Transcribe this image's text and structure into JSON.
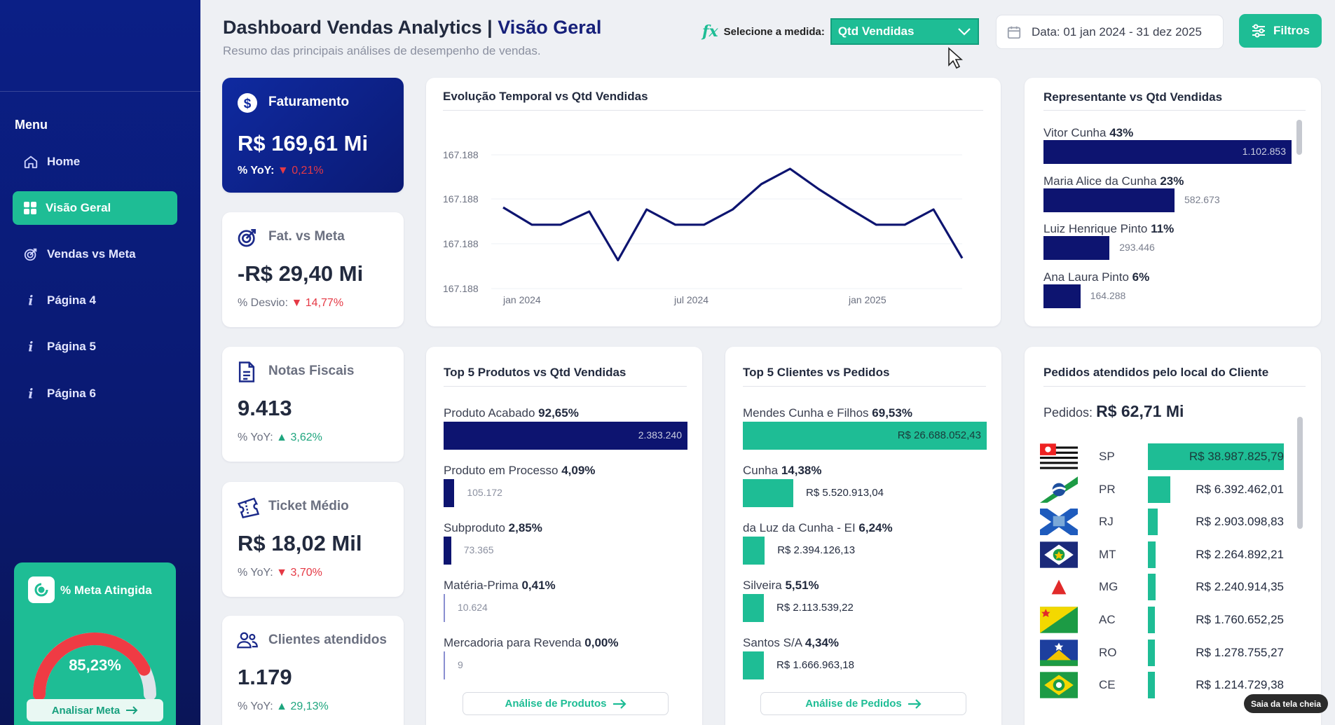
{
  "sidebar": {
    "menu_label": "Menu",
    "items": [
      {
        "label": "Home",
        "icon": "home-icon"
      },
      {
        "label": "Visão Geral",
        "icon": "grid-icon",
        "active": true
      },
      {
        "label": "Vendas vs Meta",
        "icon": "target-icon"
      },
      {
        "label": "Página 4",
        "icon": "info-icon"
      },
      {
        "label": "Página 5",
        "icon": "info-icon"
      },
      {
        "label": "Página 6",
        "icon": "info-icon"
      }
    ],
    "meta": {
      "title": "% Meta Atingida",
      "value": "85,23%",
      "fraction": 0.8523,
      "button": "Analisar Meta"
    }
  },
  "header": {
    "title": "Dashboard Vendas Analytics",
    "separator": "|",
    "title_sub": "Visão Geral",
    "subtitle": "Resumo das principais análises de desempenho de vendas.",
    "measure_label": "Selecione a medida:",
    "measure_value": "Qtd Vendidas",
    "date_range": "Data: 01 jan 2024 - 31 dez 2025",
    "filters_button": "Filtros"
  },
  "kpis": {
    "faturamento": {
      "label": "Faturamento",
      "value": "R$ 169,61 Mi",
      "yoy_label": "% YoY:",
      "yoy_value": "0,21%",
      "arrow": "▼"
    },
    "fat_meta": {
      "label": "Fat. vs Meta",
      "value": "-R$ 29,40 Mi",
      "yoy_label": "% Desvio:",
      "yoy_value": "14,77%",
      "arrow": "▼"
    },
    "notas": {
      "label": "Notas Fiscais",
      "value": "9.413",
      "yoy_label": "% YoY:",
      "yoy_value": "3,62%",
      "arrow": "▲"
    },
    "ticket": {
      "label": "Ticket Médio",
      "value": "R$ 18,02 Mil",
      "yoy_label": "% YoY:",
      "yoy_value": "3,70%",
      "arrow": "▼"
    },
    "clientes": {
      "label": "Clientes atendidos",
      "value": "1.179",
      "yoy_label": "% YoY:",
      "yoy_value": "29,13%",
      "arrow": "▲"
    }
  },
  "evolucao": {
    "title": "Evolução Temporal vs Qtd Vendidas"
  },
  "representante": {
    "title": "Representante vs Qtd Vendidas",
    "items": [
      {
        "name": "Vitor Cunha",
        "pct": "43%",
        "value": "1.102.853",
        "v": 1102853
      },
      {
        "name": "Maria Alice da Cunha",
        "pct": "23%",
        "value": "582.673",
        "v": 582673
      },
      {
        "name": "Luiz Henrique Pinto",
        "pct": "11%",
        "value": "293.446",
        "v": 293446
      },
      {
        "name": "Ana Laura Pinto",
        "pct": "6%",
        "value": "164.288",
        "v": 164288
      }
    ]
  },
  "produtos": {
    "title": "Top 5 Produtos vs Qtd Vendidas",
    "button": "Análise de Produtos",
    "items": [
      {
        "name": "Produto Acabado",
        "pct": "92,65%",
        "value": "2.383.240",
        "v": 2383240
      },
      {
        "name": "Produto em Processo",
        "pct": "4,09%",
        "value": "105.172",
        "v": 105172
      },
      {
        "name": "Subproduto",
        "pct": "2,85%",
        "value": "73.365",
        "v": 73365
      },
      {
        "name": "Matéria-Prima",
        "pct": "0,41%",
        "value": "10.624",
        "v": 10624
      },
      {
        "name": "Mercadoria para Revenda",
        "pct": "0,00%",
        "value": "9",
        "v": 9
      }
    ]
  },
  "clientes": {
    "title": "Top 5 Clientes vs Pedidos",
    "button": "Análise de Pedidos",
    "items": [
      {
        "name": "Mendes Cunha e Filhos",
        "pct": "69,53%",
        "value": "R$ 26.688.052,43",
        "v": 26688052.43
      },
      {
        "name": "Cunha",
        "pct": "14,38%",
        "value": "R$ 5.520.913,04",
        "v": 5520913.04
      },
      {
        "name": "da Luz da Cunha - EI",
        "pct": "6,24%",
        "value": "R$ 2.394.126,13",
        "v": 2394126.13
      },
      {
        "name": "Silveira",
        "pct": "5,51%",
        "value": "R$ 2.113.539,22",
        "v": 2113539.22
      },
      {
        "name": "Santos S/A",
        "pct": "4,34%",
        "value": "R$ 1.666.963,18",
        "v": 1666963.18
      }
    ]
  },
  "local": {
    "title": "Pedidos atendidos pelo local do Cliente",
    "total_label": "Pedidos:",
    "total_value": "R$ 62,71 Mi",
    "items": [
      {
        "uf": "SP",
        "value": "R$ 38.987.825,79",
        "v": 38987825.79
      },
      {
        "uf": "PR",
        "value": "R$ 6.392.462,01",
        "v": 6392462.01
      },
      {
        "uf": "RJ",
        "value": "R$ 2.903.098,83",
        "v": 2903098.83
      },
      {
        "uf": "MT",
        "value": "R$ 2.264.892,21",
        "v": 2264892.21
      },
      {
        "uf": "MG",
        "value": "R$ 2.240.914,35",
        "v": 2240914.35
      },
      {
        "uf": "AC",
        "value": "R$ 1.760.652,25",
        "v": 1760652.25
      },
      {
        "uf": "RO",
        "value": "R$ 1.278.755,27",
        "v": 1278755.27
      },
      {
        "uf": "CE",
        "value": "R$ 1.214.729,38",
        "v": 1214729.38
      }
    ]
  },
  "toast": "Saia da tela cheia",
  "colors": {
    "navy": "#0b1a74",
    "teal": "#1ebd95",
    "red": "#e53945",
    "green": "#1ea57e"
  },
  "chart_data": {
    "type": "line",
    "title": "Evolução Temporal vs Qtd Vendidas",
    "x_tick_labels": [
      "jan 2024",
      "jul 2024",
      "jan 2025"
    ],
    "y_tick_labels": [
      "167.188",
      "167.188",
      "167.188",
      "167.188"
    ],
    "series": [
      {
        "values": [
          0.62,
          0.45,
          0.45,
          0.58,
          0.1,
          0.6,
          0.45,
          0.45,
          0.6,
          0.85,
          1.0,
          0.8,
          0.62,
          0.45,
          0.45,
          0.6,
          0.12
        ]
      }
    ]
  }
}
